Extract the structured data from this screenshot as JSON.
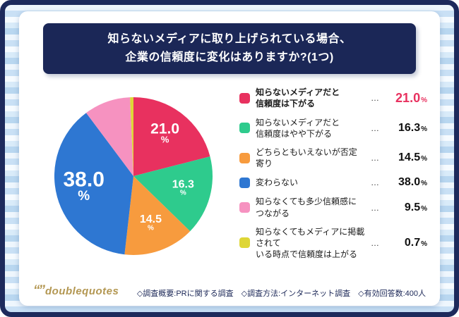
{
  "title": {
    "line1": "知らないメディアに取り上げられている場合、",
    "line2": "企業の信頼度に変化はありますか?(1つ)"
  },
  "chart_data": {
    "type": "pie",
    "title": "知らないメディアに取り上げられている場合、企業の信頼度に変化はありますか?(1つ)",
    "unit": "%",
    "direction": "clockwise",
    "start_angle_deg": 0,
    "slices": [
      {
        "label": "知らないメディアだと信頼度は下がる",
        "value": 21.0,
        "display": "21.0",
        "color": "#e8315f",
        "show_label": true
      },
      {
        "label": "知らないメディアだと信頼度はやや下がる",
        "value": 16.3,
        "display": "16.3",
        "color": "#2ecb8d",
        "show_label": true
      },
      {
        "label": "どちらともいえないが否定寄り",
        "value": 14.5,
        "display": "14.5",
        "color": "#f79b3e",
        "show_label": true
      },
      {
        "label": "変わらない",
        "value": 38.0,
        "display": "38.0",
        "color": "#2e77d2",
        "show_label": true
      },
      {
        "label": "知らなくても多少信頼感につながる",
        "value": 9.5,
        "display": "9.5",
        "color": "#f692c0",
        "show_label": false
      },
      {
        "label": "知らなくてもメディアに掲載されている時点で信頼度は上がる",
        "value": 0.7,
        "display": "0.7",
        "color": "#ded636",
        "show_label": false
      }
    ]
  },
  "legend": {
    "leader": "…",
    "items": [
      {
        "lines": [
          "知らないメディアだと",
          "信頼度は下がる"
        ],
        "value": "21.0",
        "unit": "%",
        "emphasis": true
      },
      {
        "lines": [
          "知らないメディアだと",
          "信頼度はやや下がる"
        ],
        "value": "16.3",
        "unit": "%",
        "emphasis": false
      },
      {
        "lines": [
          "どちらともいえないが否定寄り"
        ],
        "value": "14.5",
        "unit": "%",
        "emphasis": false
      },
      {
        "lines": [
          "変わらない"
        ],
        "value": "38.0",
        "unit": "%",
        "emphasis": false
      },
      {
        "lines": [
          "知らなくても多少信頼感につながる"
        ],
        "value": "9.5",
        "unit": "%",
        "emphasis": false
      },
      {
        "lines": [
          "知らなくてもメディアに掲載されて",
          "いる時点で信頼度は上がる"
        ],
        "value": "0.7",
        "unit": "%",
        "emphasis": false
      }
    ]
  },
  "logo": {
    "marks": "“”",
    "text": "doublequotes"
  },
  "footer": {
    "survey_info": "◇調査概要:PRに関する調査　◇調査方法:インターネット調査　◇有効回答数:400人"
  },
  "colors": {
    "accent": "#e8315f",
    "banner": "#1b2757",
    "frame": "#1d2a5c"
  }
}
